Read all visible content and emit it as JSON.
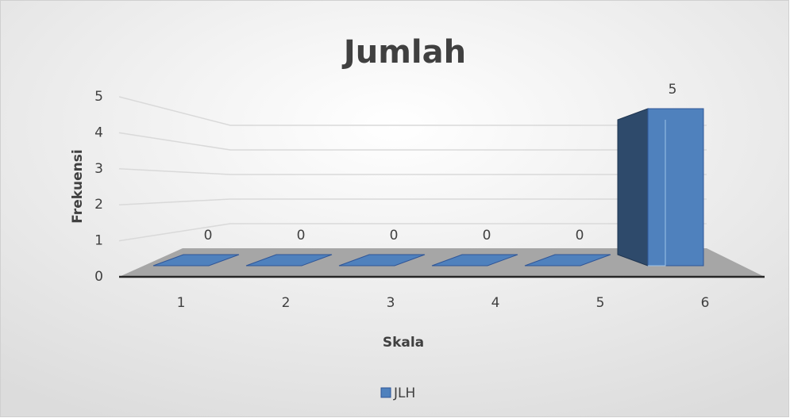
{
  "chart_data": {
    "type": "bar3d",
    "title": "Jumlah",
    "x_label": "Skala",
    "y_label": "Frekuensi",
    "categories": [
      "1",
      "2",
      "3",
      "4",
      "5",
      "6"
    ],
    "series": [
      {
        "name": "JLH",
        "color": "#4f81bd",
        "values": [
          0,
          0,
          0,
          0,
          0,
          5
        ]
      }
    ],
    "ylim": [
      0,
      5
    ],
    "yticks": [
      0,
      1,
      2,
      3,
      4,
      5
    ],
    "grid": true,
    "legend": "bottom"
  }
}
